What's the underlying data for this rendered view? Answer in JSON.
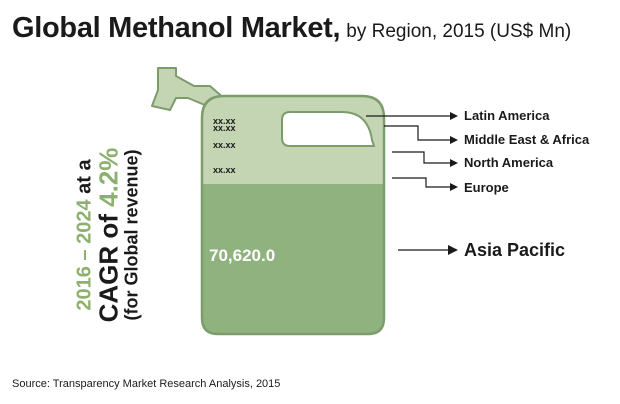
{
  "title": {
    "main": "Global Methanol Market,",
    "sub": "by Region, 2015 (US$ Mn)"
  },
  "cagr": {
    "period": "2016 – 2024",
    "at_a": " at a",
    "cagr_word": "CAGR",
    "of": " of ",
    "rate": "4.2%",
    "note": "(for Global revenue)"
  },
  "source": "Source: Transparency Market Research Analysis, 2015",
  "colors": {
    "jug_upper": "#c4d5b3",
    "jug_lower": "#8fb27e",
    "jug_outline": "#7d9c6c",
    "accent": "#8db06f",
    "arrow": "#1a1a1a"
  },
  "chart_data": {
    "type": "table",
    "title": "Global Methanol Market, by Region, 2015 (US$ Mn)",
    "units": "US$ Mn",
    "categories": [
      "Latin America",
      "Middle East & Africa",
      "North America",
      "Europe",
      "Asia Pacific"
    ],
    "value_labels": [
      "xx.xx",
      "xx.xx",
      "xx.xx",
      "xx.xx",
      "70,620.0"
    ],
    "values": [
      null,
      null,
      null,
      null,
      70620.0
    ],
    "cagr": {
      "period": "2016 – 2024",
      "rate_percent": 4.2,
      "scope": "Global revenue"
    }
  }
}
